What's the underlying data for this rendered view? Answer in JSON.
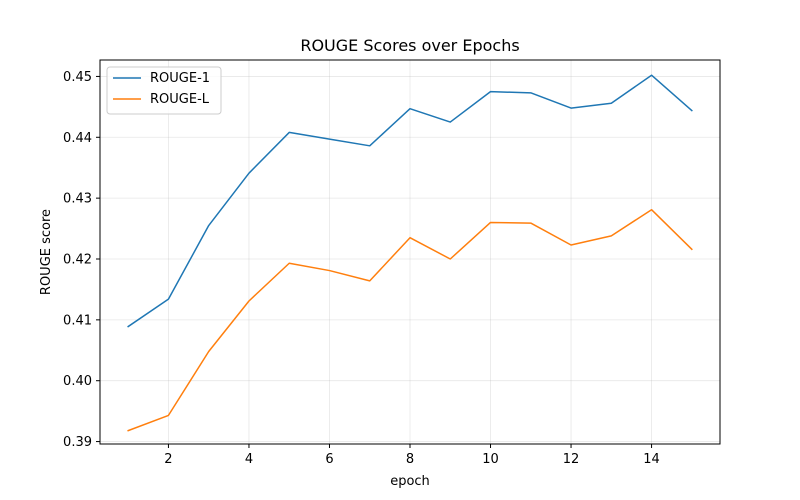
{
  "chart_data": {
    "type": "line",
    "title": "ROUGE Scores over Epochs",
    "xlabel": "epoch",
    "ylabel": "ROUGE score",
    "x": [
      1,
      2,
      3,
      4,
      5,
      6,
      7,
      8,
      9,
      10,
      11,
      12,
      13,
      14,
      15
    ],
    "series": [
      {
        "name": "ROUGE-1",
        "color": "#1f77b4",
        "values": [
          0.4089,
          0.4134,
          0.4255,
          0.4341,
          0.4408,
          0.4397,
          0.4386,
          0.4447,
          0.4425,
          0.4475,
          0.4473,
          0.4448,
          0.4456,
          0.4502,
          0.4444
        ]
      },
      {
        "name": "ROUGE-L",
        "color": "#ff7f0e",
        "values": [
          0.3918,
          0.3943,
          0.4048,
          0.4131,
          0.4193,
          0.4181,
          0.4164,
          0.4235,
          0.42,
          0.426,
          0.4259,
          0.4223,
          0.4238,
          0.4281,
          0.4216
        ]
      }
    ],
    "xlim": [
      0.3,
      15.7
    ],
    "ylim": [
      0.3896,
      0.4527
    ],
    "xticks": [
      2,
      4,
      6,
      8,
      10,
      12,
      14
    ],
    "yticks": [
      0.39,
      0.4,
      0.41,
      0.42,
      0.43,
      0.44,
      0.45
    ],
    "ytick_labels": [
      "0.39",
      "0.40",
      "0.41",
      "0.42",
      "0.43",
      "0.44",
      "0.45"
    ],
    "grid": true,
    "legend_position": "top-left"
  }
}
